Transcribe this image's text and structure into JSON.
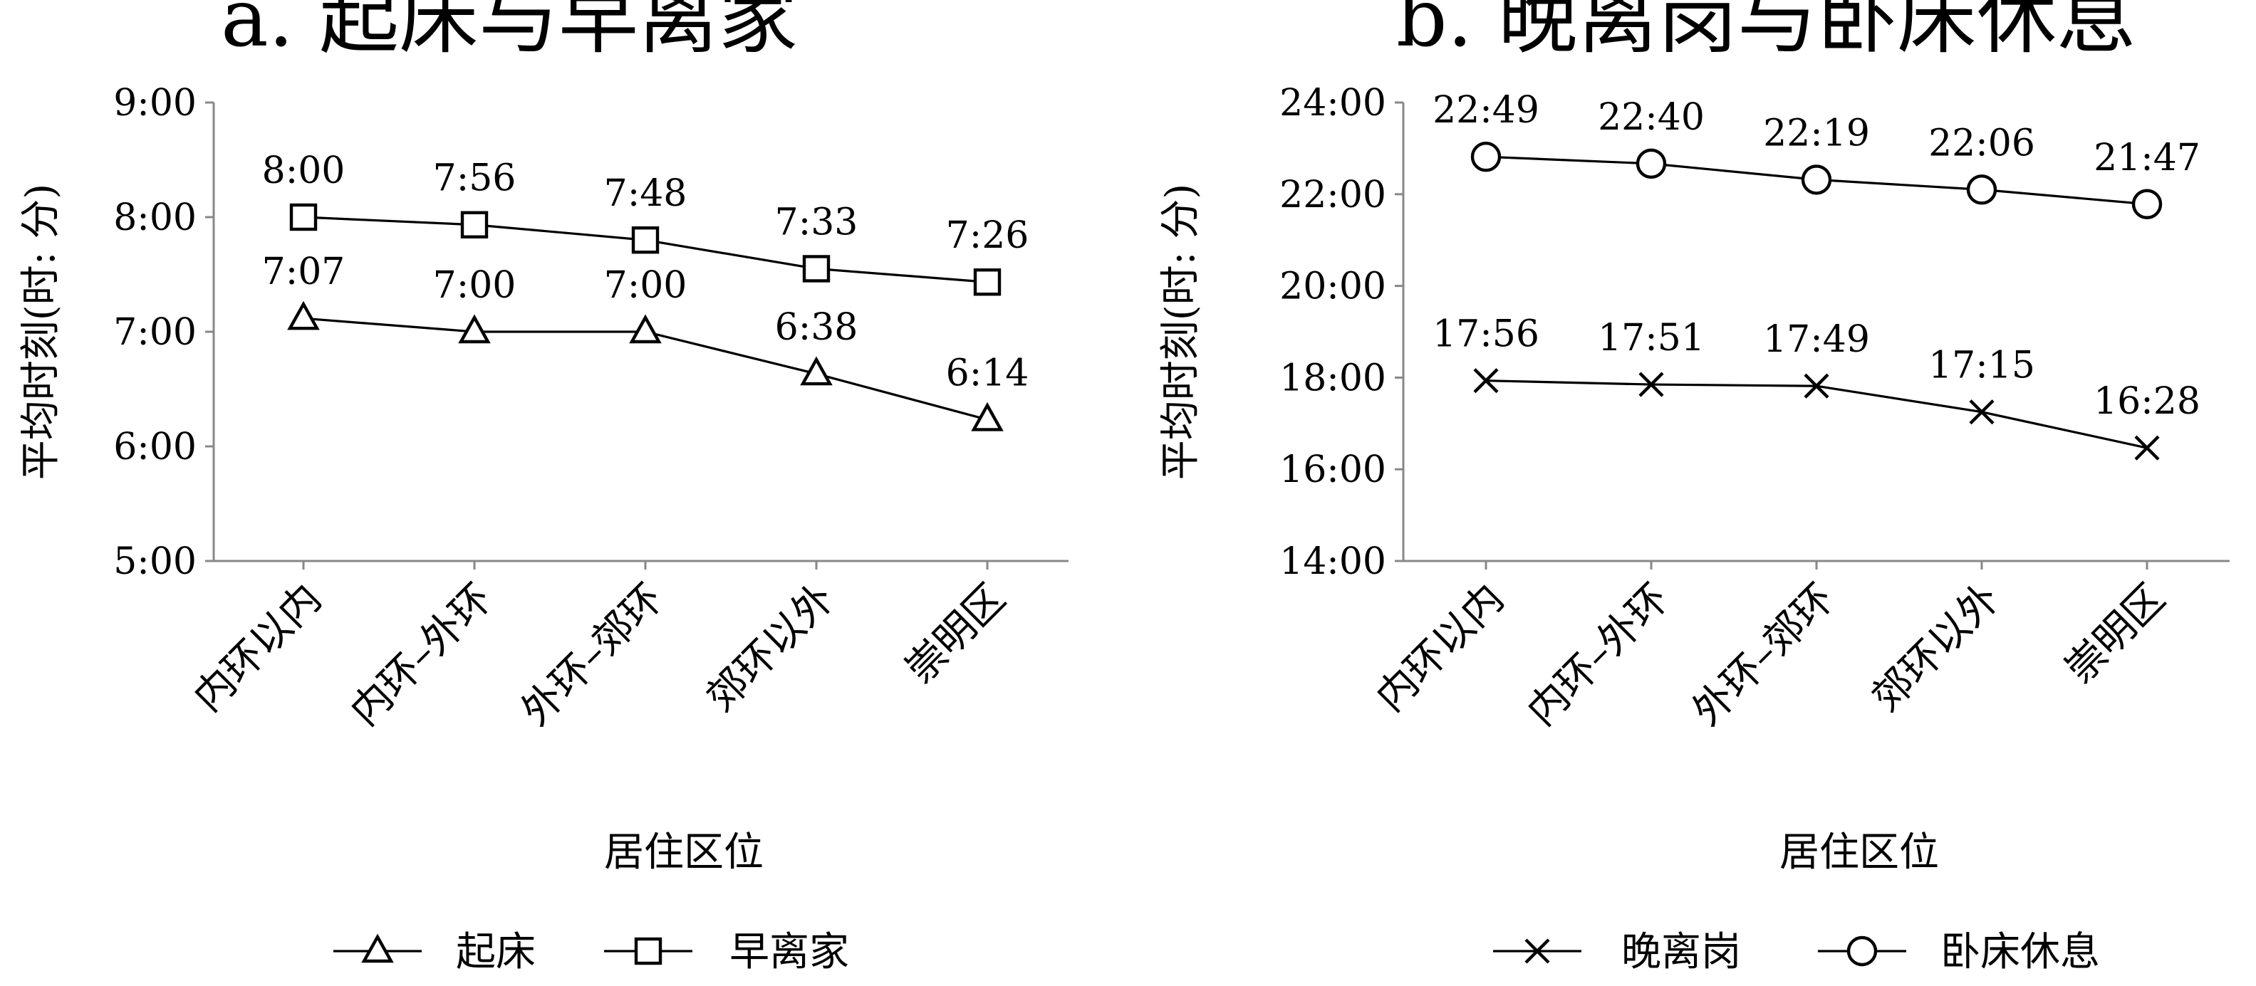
{
  "chart_data": [
    {
      "type": "line",
      "title": "a. 起床与早离家",
      "xlabel": "居住区位",
      "ylabel": "平均时刻(时: 分)",
      "categories": [
        "内环以内",
        "内环–外环",
        "外环–郊环",
        "郊环以外",
        "崇明区"
      ],
      "y_ticks": [
        "5:00",
        "6:00",
        "7:00",
        "8:00",
        "9:00"
      ],
      "ylim": [
        300,
        540
      ],
      "y_unit": "minutes since 0:00",
      "grid": false,
      "legend_position": "bottom",
      "series": [
        {
          "name": "起床",
          "marker": "triangle",
          "values": [
            427,
            420,
            420,
            398,
            374
          ],
          "labels": [
            "7:07",
            "7:00",
            "7:00",
            "6:38",
            "6:14"
          ]
        },
        {
          "name": "早离家",
          "marker": "square",
          "values": [
            480,
            476,
            468,
            453,
            446
          ],
          "labels": [
            "8:00",
            "7:56",
            "7:48",
            "7:33",
            "7:26"
          ]
        }
      ]
    },
    {
      "type": "line",
      "title": "b. 晚离岗与卧床休息",
      "xlabel": "居住区位",
      "ylabel": "平均时刻(时: 分)",
      "categories": [
        "内环以内",
        "内环–外环",
        "外环–郊环",
        "郊环以外",
        "崇明区"
      ],
      "y_ticks": [
        "14:00",
        "16:00",
        "18:00",
        "20:00",
        "22:00",
        "24:00"
      ],
      "ylim": [
        840,
        1440
      ],
      "y_unit": "minutes since 0:00",
      "grid": false,
      "legend_position": "bottom",
      "series": [
        {
          "name": "晚离岗",
          "marker": "x",
          "values": [
            1076,
            1071,
            1069,
            1035,
            988
          ],
          "labels": [
            "17:56",
            "17:51",
            "17:49",
            "17:15",
            "16:28"
          ]
        },
        {
          "name": "卧床休息",
          "marker": "circle",
          "values": [
            1369,
            1360,
            1339,
            1326,
            1307
          ],
          "labels": [
            "22:49",
            "22:40",
            "22:19",
            "22:06",
            "21:47"
          ]
        }
      ]
    }
  ]
}
